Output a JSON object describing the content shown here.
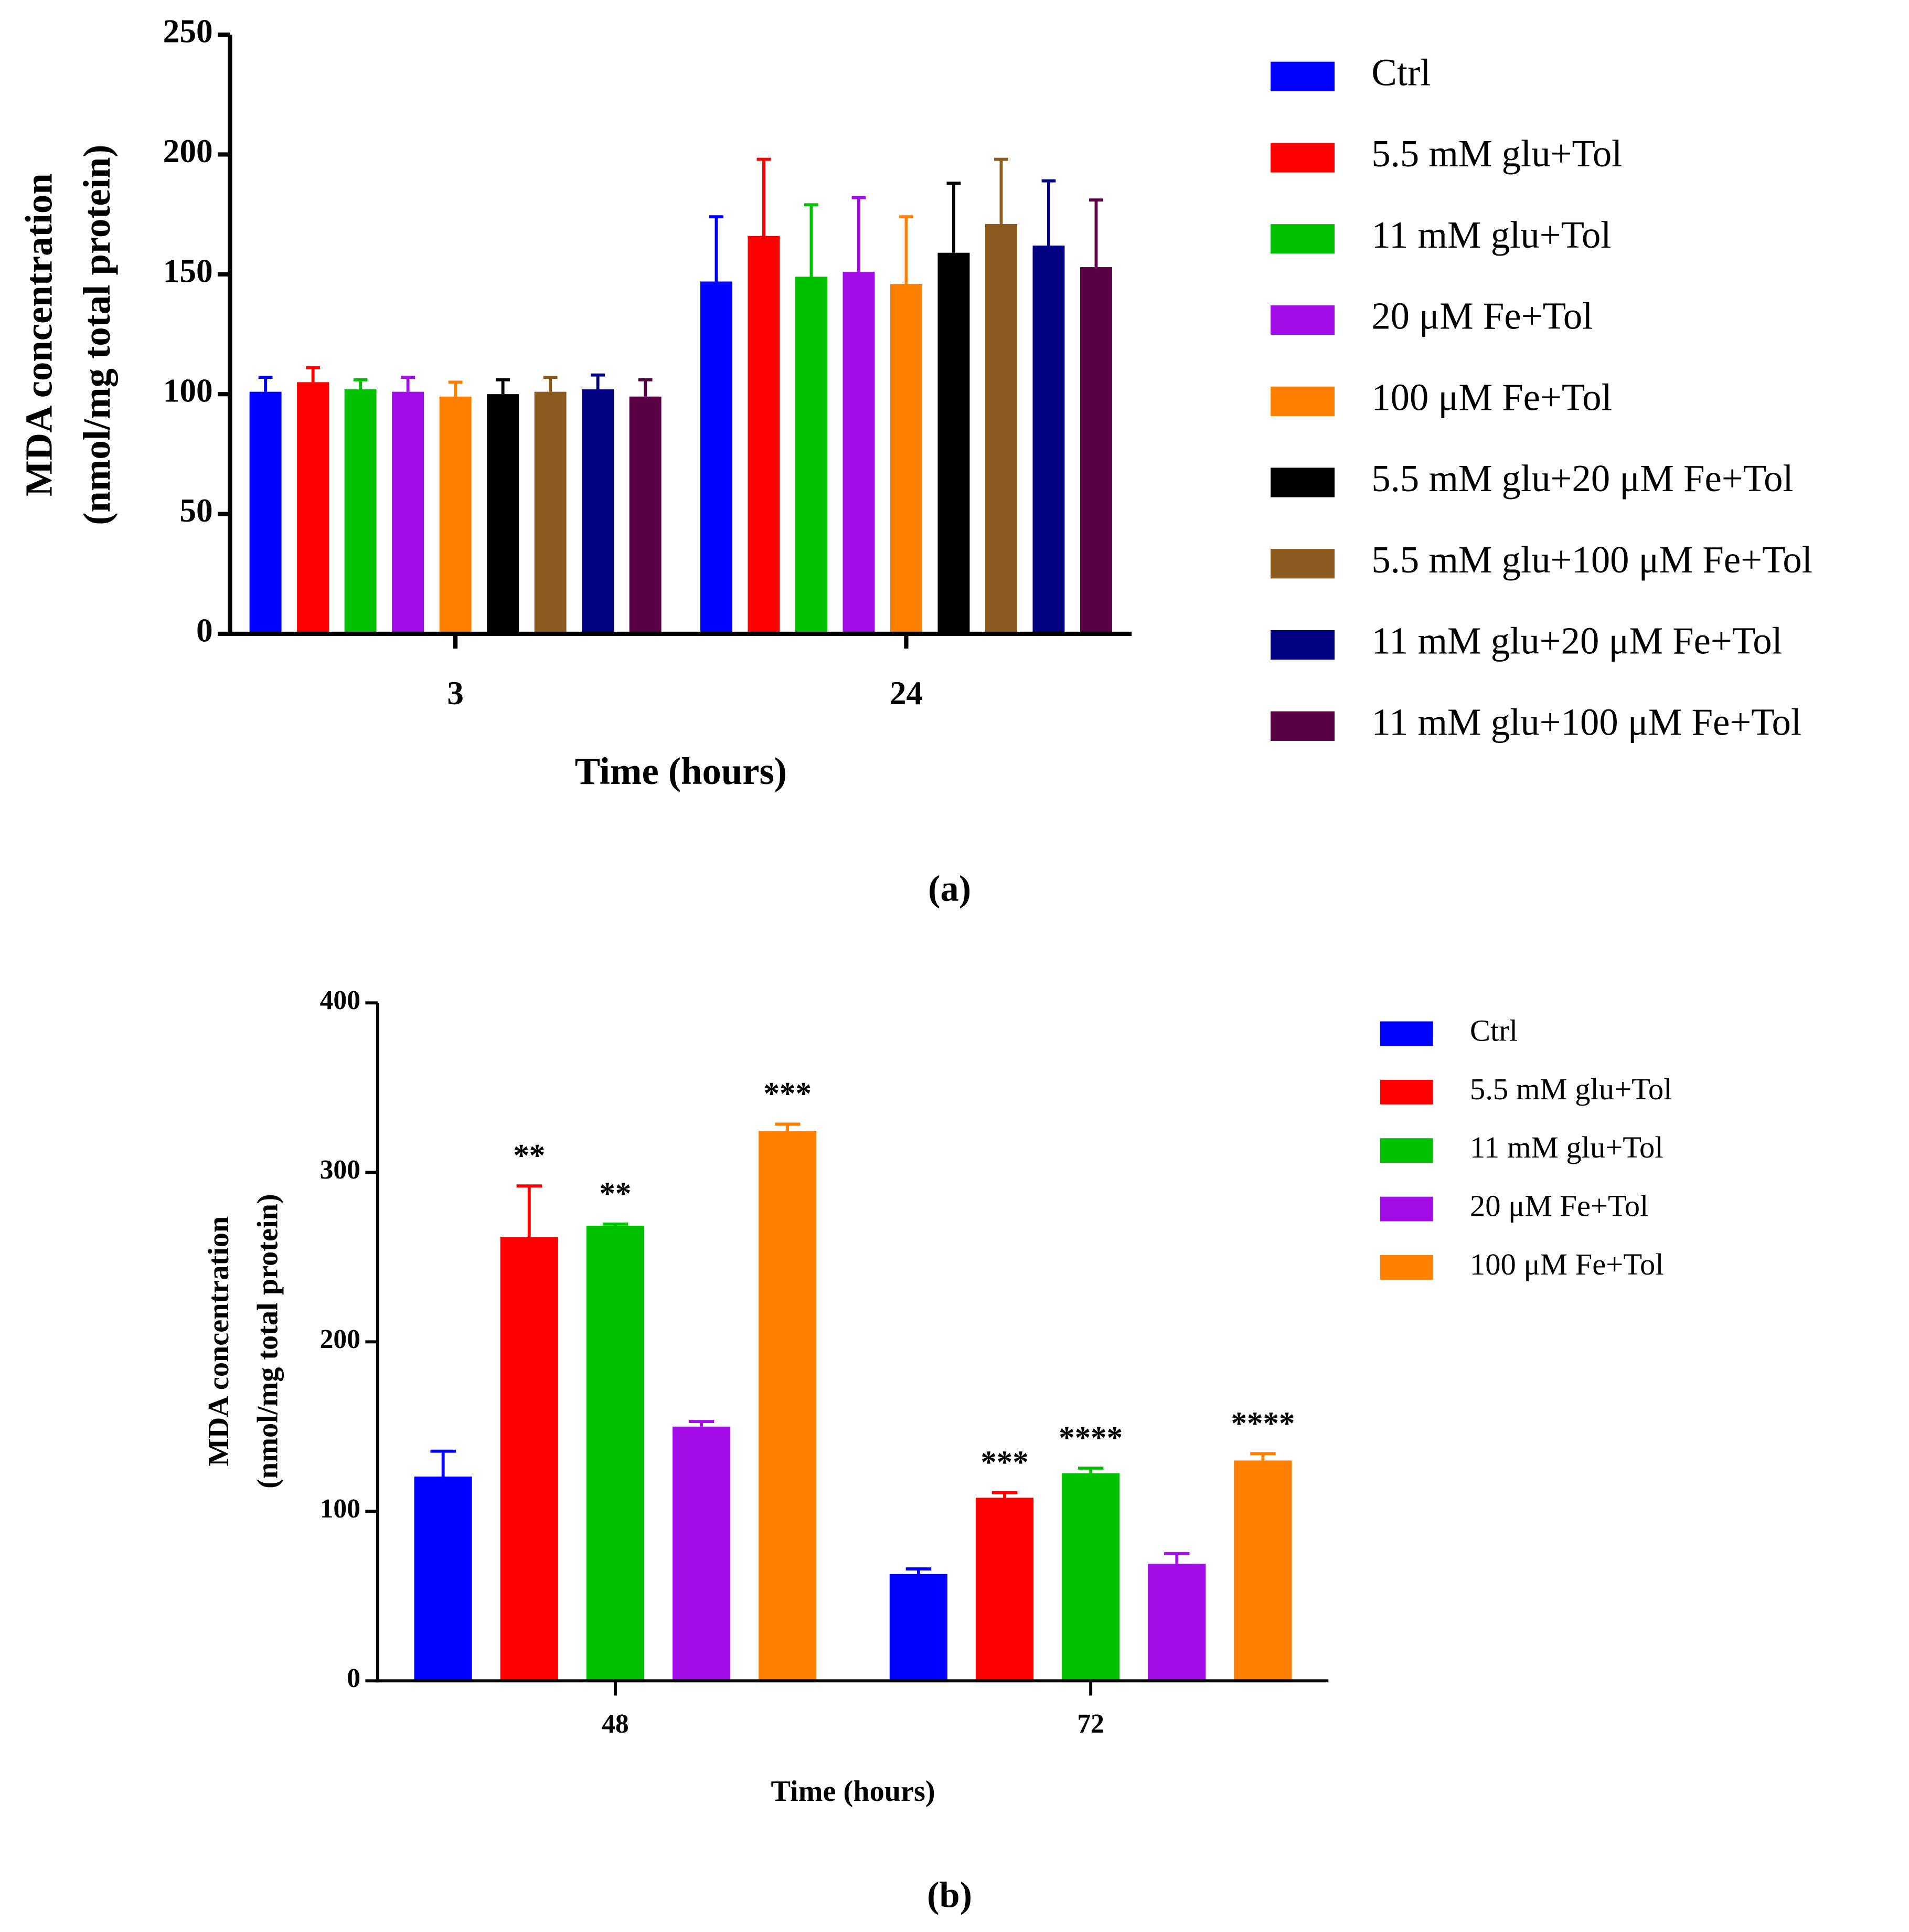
{
  "chart_data": [
    {
      "type": "bar",
      "panel_label": "(a)",
      "xlabel": "Time (hours)",
      "ylabel": [
        "MDA concentration",
        "(nmol/mg total protein)"
      ],
      "categories": [
        "3",
        "24"
      ],
      "ylim": [
        0,
        250
      ],
      "yticks": [
        0,
        50,
        100,
        150,
        200,
        250
      ],
      "series": [
        {
          "name": "Ctrl",
          "color": "#0000ff",
          "values": [
            101,
            147
          ],
          "errors": [
            6,
            27
          ]
        },
        {
          "name": "5.5 mM glu+Tol",
          "color": "#ff0000",
          "values": [
            105,
            166
          ],
          "errors": [
            6,
            32
          ]
        },
        {
          "name": "11 mM glu+Tol",
          "color": "#00c000",
          "values": [
            102,
            149
          ],
          "errors": [
            4,
            30
          ]
        },
        {
          "name": "20 μM Fe+Tol",
          "color": "#a30ee8",
          "values": [
            101,
            151
          ],
          "errors": [
            6,
            31
          ]
        },
        {
          "name": "100 μM Fe+Tol",
          "color": "#ff8000",
          "values": [
            99,
            146
          ],
          "errors": [
            6,
            28
          ]
        },
        {
          "name": "5.5 mM glu+20 μM Fe+Tol",
          "color": "#000000",
          "values": [
            100,
            159
          ],
          "errors": [
            6,
            29
          ]
        },
        {
          "name": "5.5 mM glu+100 μM Fe+Tol",
          "color": "#8b5a1e",
          "values": [
            101,
            171
          ],
          "errors": [
            6,
            27
          ]
        },
        {
          "name": "11 mM glu+20 μM Fe+Tol",
          "color": "#000080",
          "values": [
            102,
            162
          ],
          "errors": [
            6,
            27
          ]
        },
        {
          "name": "11 mM glu+100 μM Fe+Tol",
          "color": "#5a0045",
          "values": [
            99,
            153
          ],
          "errors": [
            7,
            28
          ]
        }
      ]
    },
    {
      "type": "bar",
      "panel_label": "(b)",
      "xlabel": "Time (hours)",
      "ylabel": [
        "MDA concentration",
        "(nmol/mg total protein)"
      ],
      "categories": [
        "48",
        "72"
      ],
      "ylim": [
        0,
        400
      ],
      "yticks": [
        0,
        100,
        200,
        300,
        400
      ],
      "series": [
        {
          "name": "Ctrl",
          "color": "#0000ff",
          "values": [
            120.5,
            63
          ],
          "errors": [
            15,
            3
          ],
          "annotations": [
            null,
            null
          ]
        },
        {
          "name": "5.5 mM glu+Tol",
          "color": "#ff0000",
          "values": [
            262,
            108
          ],
          "errors": [
            30,
            3
          ],
          "annotations": [
            "**",
            "***"
          ]
        },
        {
          "name": "11 mM glu+Tol",
          "color": "#00c000",
          "values": [
            268.5,
            122.5
          ],
          "errors": [
            1,
            3
          ],
          "annotations": [
            "**",
            "****"
          ]
        },
        {
          "name": "20 μM Fe+Tol",
          "color": "#a30ee8",
          "values": [
            150,
            69
          ],
          "errors": [
            3,
            6
          ],
          "annotations": [
            null,
            null
          ]
        },
        {
          "name": "100 μM Fe+Tol",
          "color": "#ff8000",
          "values": [
            324.5,
            130
          ],
          "errors": [
            4,
            4
          ],
          "annotations": [
            "***",
            "****"
          ]
        }
      ]
    }
  ]
}
